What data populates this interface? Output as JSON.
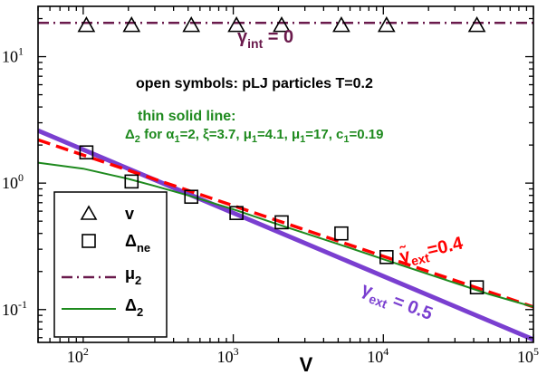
{
  "chart_data": {
    "type": "line",
    "title": "",
    "xlabel": "V",
    "ylabel": "",
    "xscale": "log",
    "yscale": "log",
    "xlim": [
      50,
      100000
    ],
    "ylim": [
      0.055,
      25
    ],
    "x_ticks": [
      {
        "base": "10",
        "exp": "2"
      },
      {
        "base": "10",
        "exp": "3"
      },
      {
        "base": "10",
        "exp": "4"
      },
      {
        "base": "10",
        "exp": "5"
      }
    ],
    "y_ticks": [
      {
        "value": 0.1,
        "base": "10",
        "exp": "-1"
      },
      {
        "value": 1,
        "base": "10",
        "exp": "0"
      },
      {
        "value": 10,
        "base": "10",
        "exp": "1"
      }
    ],
    "grid": false,
    "legend_position": "bottom-left",
    "colors": {
      "v": "#000000",
      "delta_ne": "#000000",
      "mu2": "#6a1a4c",
      "delta2": "#1e8a1e",
      "gamma_ext_05": "#7a3fd0",
      "gamma_ext_04": "#ff0000",
      "text_green": "#1e8a1e"
    },
    "series": [
      {
        "key": "v",
        "name": "v",
        "style": "open triangles",
        "x": [
          105,
          210,
          525,
          1050,
          2100,
          5250,
          10500,
          42000
        ],
        "y": [
          17.5,
          17.5,
          17.5,
          17.5,
          17.5,
          17.5,
          17.5,
          17.5
        ]
      },
      {
        "key": "delta_ne",
        "name": "Δne",
        "style": "open squares",
        "x": [
          105,
          210,
          525,
          1050,
          2100,
          5250,
          10500,
          42000
        ],
        "y": [
          1.75,
          1.03,
          0.78,
          0.58,
          0.49,
          0.4,
          0.26,
          0.15
        ]
      },
      {
        "key": "mu2",
        "name": "μ2",
        "style": "dash-dot line",
        "x": [
          50,
          100000
        ],
        "y": [
          18.5,
          18.5
        ]
      },
      {
        "key": "delta2",
        "name": "Δ2",
        "style": "thin solid line",
        "x": [
          50,
          100,
          200,
          300,
          500,
          1000,
          2000,
          5000,
          10000,
          50000,
          100000
        ],
        "y": [
          1.45,
          1.3,
          1.08,
          0.95,
          0.8,
          0.62,
          0.47,
          0.33,
          0.25,
          0.133,
          0.105
        ]
      },
      {
        "key": "gamma_ext_05",
        "style": "thick solid line",
        "x": [
          50,
          100000
        ],
        "y": [
          2.6,
          0.058
        ]
      },
      {
        "key": "gamma_ext_04",
        "style": "thick dashed line",
        "x": [
          50,
          100000
        ],
        "y": [
          2.2,
          0.105
        ]
      }
    ],
    "annotations": {
      "gamma_int": {
        "symbol": "γ",
        "sub": "int",
        "rest": " = 0"
      },
      "open_symbols": "open symbols: pLJ particles T=0.2",
      "thin_solid_title": "thin solid line:",
      "thin_solid_formula": {
        "d": "Δ",
        "d_sub": "2",
        "for": " for ",
        "a": "α",
        "a_sub": "1",
        "a_val": "=2, ",
        "xi": "ξ=3.7, ",
        "mu": "μ",
        "mu_sub": "1",
        "mu_val": "=4.1, ",
        "mu2": "μ",
        "mu2_sub": "1",
        "mu2_val": "=17, ",
        "c": "c",
        "c_sub": "1",
        "c_val": "=0.19"
      },
      "gamma_ext_04": {
        "symbol": "γ̃",
        "sub": "ext",
        "rest": "=0.4"
      },
      "gamma_ext_05": {
        "symbol": "γ",
        "sub": "ext",
        "rest": " = 0.5"
      }
    },
    "legend": {
      "v": "v",
      "delta_ne": {
        "main": "Δ",
        "sub": "ne"
      },
      "mu2": {
        "main": "μ",
        "sub": "2"
      },
      "delta2": {
        "main": "Δ",
        "sub": "2"
      }
    }
  }
}
